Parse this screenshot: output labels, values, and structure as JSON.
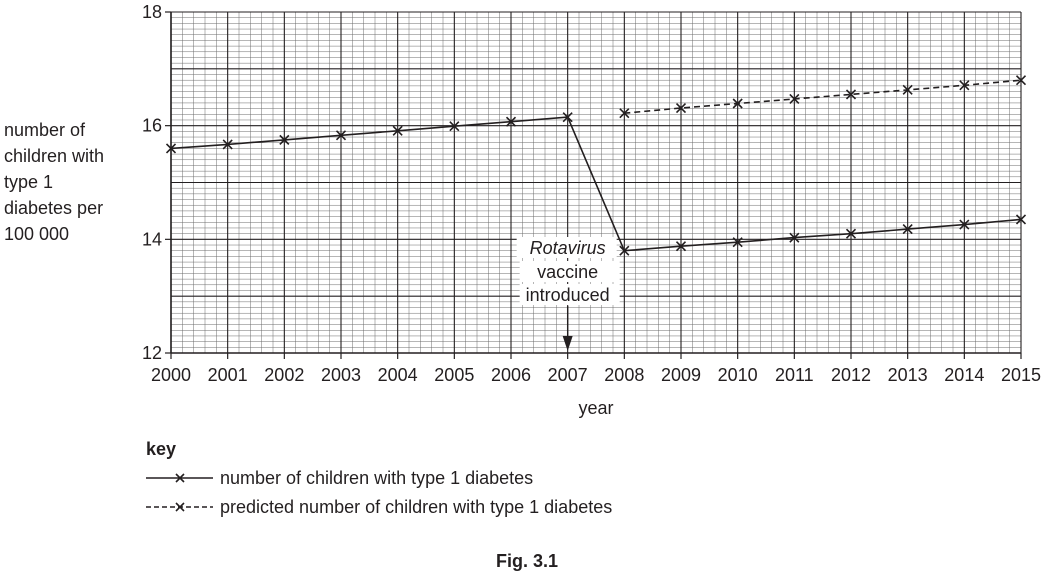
{
  "chart_data": {
    "type": "line",
    "xlabel": "year",
    "ylabel_lines": [
      "number of",
      "children with",
      "type 1",
      "diabetes per",
      "100 000"
    ],
    "xlim": [
      2000,
      2015
    ],
    "ylim": [
      12,
      18
    ],
    "x_ticks": [
      "2000",
      "2001",
      "2002",
      "2003",
      "2004",
      "2005",
      "2006",
      "2007",
      "2008",
      "2009",
      "2010",
      "2011",
      "2012",
      "2013",
      "2014",
      "2015"
    ],
    "y_ticks": [
      "12",
      "14",
      "16",
      "18"
    ],
    "grid": true,
    "series": [
      {
        "name": "number of children with type 1 diabetes",
        "style": "solid",
        "x": [
          2000,
          2001,
          2002,
          2003,
          2004,
          2005,
          2006,
          2007,
          2008,
          2009,
          2010,
          2011,
          2012,
          2013,
          2014,
          2015
        ],
        "y": [
          15.6,
          15.67,
          15.75,
          15.83,
          15.91,
          15.99,
          16.07,
          16.15,
          13.8,
          13.88,
          13.95,
          14.03,
          14.1,
          14.18,
          14.26,
          14.35
        ]
      },
      {
        "name": "predicted number of children with type 1 diabetes",
        "style": "dashed",
        "x": [
          2008,
          2009,
          2010,
          2011,
          2012,
          2013,
          2014,
          2015
        ],
        "y": [
          16.22,
          16.31,
          16.39,
          16.47,
          16.55,
          16.63,
          16.71,
          16.8
        ]
      }
    ],
    "annotation": {
      "lines": [
        "Rotavirus",
        "vaccine",
        "introduced"
      ],
      "x": 2007
    },
    "key": {
      "title": "key",
      "entries": [
        "number of children with type 1 diabetes",
        "predicted number of children with type 1 diabetes"
      ]
    },
    "caption": "Fig. 3.1"
  }
}
